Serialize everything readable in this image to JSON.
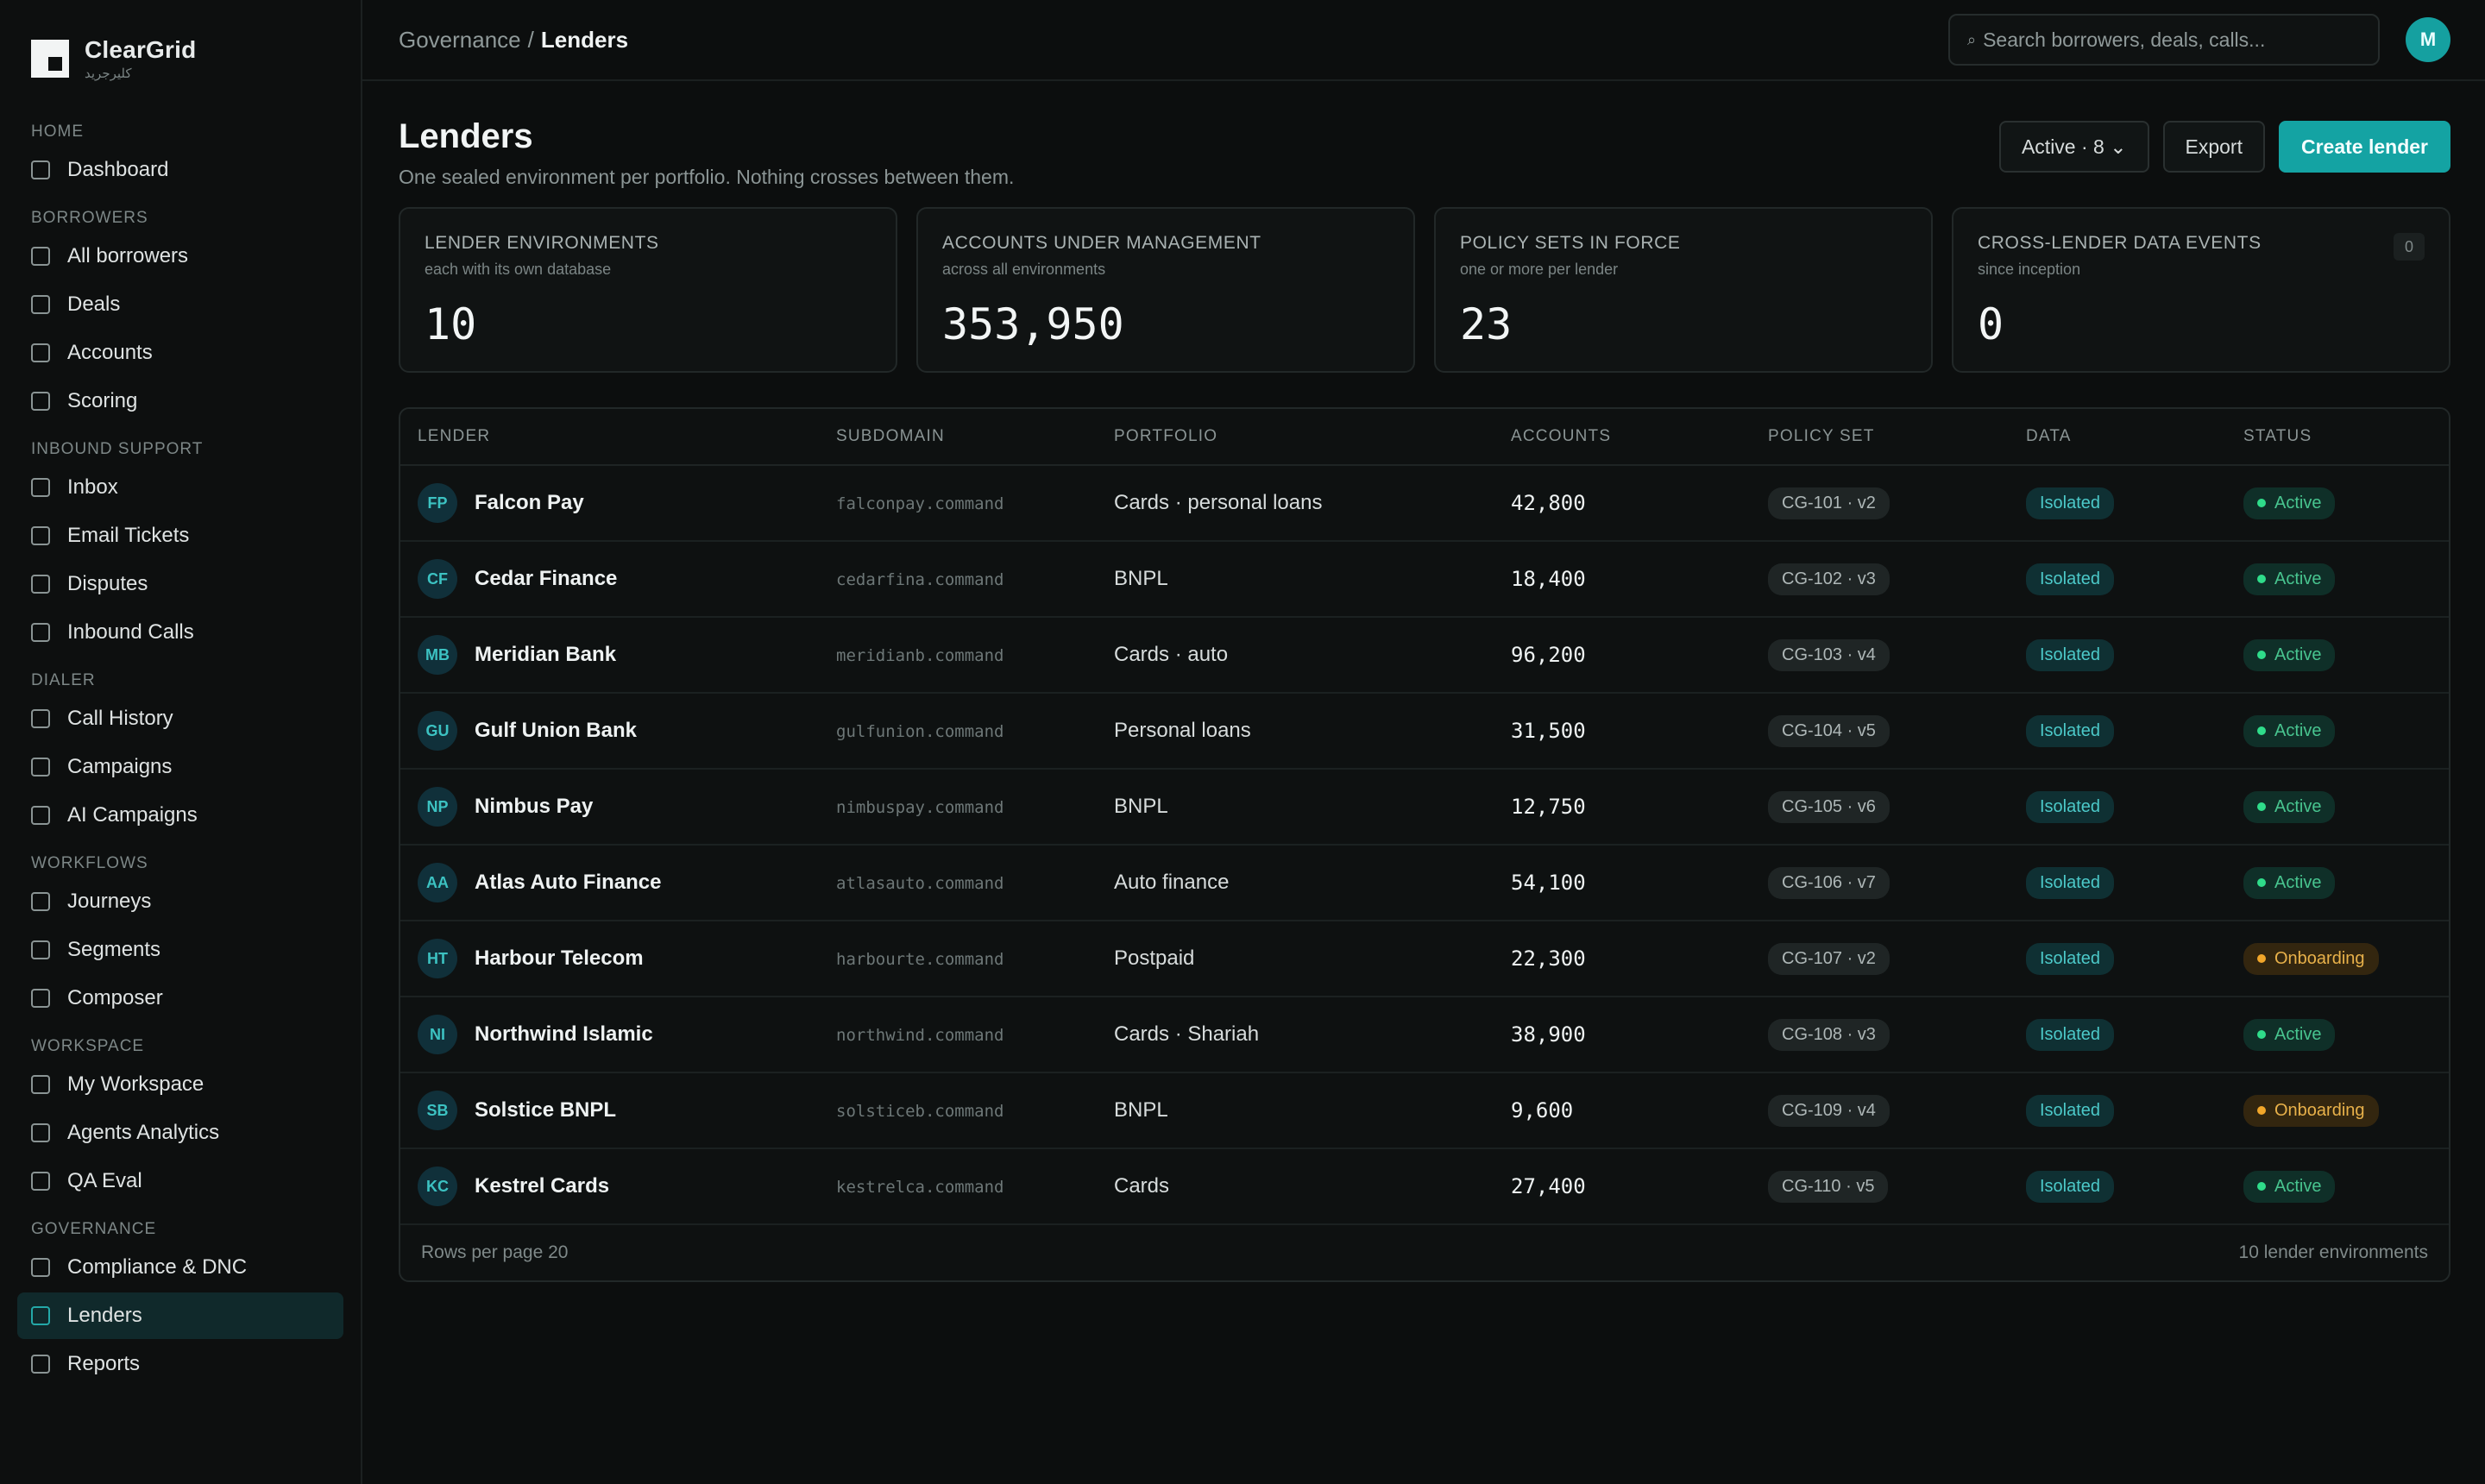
{
  "brand": {
    "name": "ClearGrid",
    "sub": "كليرجريد"
  },
  "sidebar": {
    "sections": [
      {
        "title": "HOME",
        "items": [
          {
            "label": "Dashboard"
          }
        ]
      },
      {
        "title": "BORROWERS",
        "items": [
          {
            "label": "All borrowers"
          },
          {
            "label": "Deals"
          },
          {
            "label": "Accounts"
          },
          {
            "label": "Scoring"
          }
        ]
      },
      {
        "title": "INBOUND SUPPORT",
        "items": [
          {
            "label": "Inbox"
          },
          {
            "label": "Email Tickets"
          },
          {
            "label": "Disputes"
          },
          {
            "label": "Inbound Calls"
          }
        ]
      },
      {
        "title": "DIALER",
        "items": [
          {
            "label": "Call History"
          },
          {
            "label": "Campaigns"
          },
          {
            "label": "AI Campaigns"
          }
        ]
      },
      {
        "title": "WORKFLOWS",
        "items": [
          {
            "label": "Journeys"
          },
          {
            "label": "Segments"
          },
          {
            "label": "Composer"
          }
        ]
      },
      {
        "title": "WORKSPACE",
        "items": [
          {
            "label": "My Workspace"
          },
          {
            "label": "Agents Analytics"
          },
          {
            "label": "QA Eval"
          }
        ]
      },
      {
        "title": "GOVERNANCE",
        "items": [
          {
            "label": "Compliance & DNC"
          },
          {
            "label": "Lenders",
            "active": true
          },
          {
            "label": "Reports"
          }
        ]
      }
    ]
  },
  "topbar": {
    "breadcrumb_parent": "Governance",
    "breadcrumb_sep": "/",
    "breadcrumb_current": "Lenders",
    "search_icon": "⌕",
    "search_placeholder": "Search borrowers, deals, calls...",
    "avatar": "M"
  },
  "page": {
    "title": "Lenders",
    "subtitle": "One sealed environment per portfolio. Nothing crosses between them.",
    "filter_label": "Active · 8 ⌄",
    "export_label": "Export",
    "create_label": "Create lender"
  },
  "stats": [
    {
      "label": "LENDER ENVIRONMENTS",
      "sub": "each with its own database",
      "value": "10"
    },
    {
      "label": "ACCOUNTS UNDER MANAGEMENT",
      "sub": "across all environments",
      "value": "353,950"
    },
    {
      "label": "POLICY SETS IN FORCE",
      "sub": "one or more per lender",
      "value": "23"
    },
    {
      "label": "CROSS-LENDER DATA EVENTS",
      "sub": "since inception",
      "value": "0",
      "badge": "0"
    }
  ],
  "table": {
    "columns": [
      "LENDER",
      "SUBDOMAIN",
      "PORTFOLIO",
      "ACCOUNTS",
      "POLICY SET",
      "DATA",
      "STATUS"
    ],
    "rows": [
      {
        "initials": "FP",
        "lender": "Falcon Pay",
        "subdomain": "falconpay.command",
        "portfolio": "Cards · personal loans",
        "accounts": "42,800",
        "policy": "CG-101 · v2",
        "data": "Isolated",
        "status": "Active"
      },
      {
        "initials": "CF",
        "lender": "Cedar Finance",
        "subdomain": "cedarfina.command",
        "portfolio": "BNPL",
        "accounts": "18,400",
        "policy": "CG-102 · v3",
        "data": "Isolated",
        "status": "Active"
      },
      {
        "initials": "MB",
        "lender": "Meridian Bank",
        "subdomain": "meridianb.command",
        "portfolio": "Cards · auto",
        "accounts": "96,200",
        "policy": "CG-103 · v4",
        "data": "Isolated",
        "status": "Active"
      },
      {
        "initials": "GU",
        "lender": "Gulf Union Bank",
        "subdomain": "gulfunion.command",
        "portfolio": "Personal loans",
        "accounts": "31,500",
        "policy": "CG-104 · v5",
        "data": "Isolated",
        "status": "Active"
      },
      {
        "initials": "NP",
        "lender": "Nimbus Pay",
        "subdomain": "nimbuspay.command",
        "portfolio": "BNPL",
        "accounts": "12,750",
        "policy": "CG-105 · v6",
        "data": "Isolated",
        "status": "Active"
      },
      {
        "initials": "AA",
        "lender": "Atlas Auto Finance",
        "subdomain": "atlasauto.command",
        "portfolio": "Auto finance",
        "accounts": "54,100",
        "policy": "CG-106 · v7",
        "data": "Isolated",
        "status": "Active"
      },
      {
        "initials": "HT",
        "lender": "Harbour Telecom",
        "subdomain": "harbourte.command",
        "portfolio": "Postpaid",
        "accounts": "22,300",
        "policy": "CG-107 · v2",
        "data": "Isolated",
        "status": "Onboarding"
      },
      {
        "initials": "NI",
        "lender": "Northwind Islamic",
        "subdomain": "northwind.command",
        "portfolio": "Cards · Shariah",
        "accounts": "38,900",
        "policy": "CG-108 · v3",
        "data": "Isolated",
        "status": "Active"
      },
      {
        "initials": "SB",
        "lender": "Solstice BNPL",
        "subdomain": "solsticeb.command",
        "portfolio": "BNPL",
        "accounts": "9,600",
        "policy": "CG-109 · v4",
        "data": "Isolated",
        "status": "Onboarding"
      },
      {
        "initials": "KC",
        "lender": "Kestrel Cards",
        "subdomain": "kestrelca.command",
        "portfolio": "Cards",
        "accounts": "27,400",
        "policy": "CG-110 · v5",
        "data": "Isolated",
        "status": "Active"
      }
    ],
    "footer_left": "Rows per page 20",
    "footer_right": "10 lender environments"
  },
  "colors": {
    "accent": "#14a3a3",
    "active": "#2fdc8a",
    "onboarding": "#f1a62a"
  }
}
